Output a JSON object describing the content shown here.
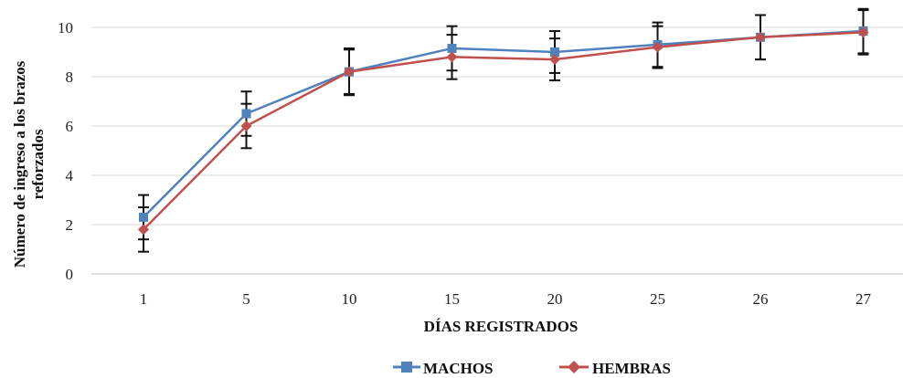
{
  "chart_data": {
    "type": "line",
    "title": "",
    "xlabel": "DÍAS REGISTRADOS",
    "ylabel_lines": [
      "Número de ingreso a los brazos",
      "reforzados"
    ],
    "categories": [
      "1",
      "5",
      "10",
      "15",
      "20",
      "25",
      "26",
      "27"
    ],
    "ylim": [
      0,
      10
    ],
    "yticks": [
      0,
      2,
      4,
      6,
      8,
      10
    ],
    "grid": true,
    "legend_position": "bottom",
    "series": [
      {
        "name": "MACHOS",
        "color": "#4F81BD",
        "marker": "square",
        "values": [
          2.3,
          6.5,
          8.2,
          9.15,
          9.0,
          9.3,
          9.6,
          9.85
        ],
        "error": [
          0.9,
          0.9,
          0.95,
          0.9,
          0.85,
          0.9,
          0.9,
          0.9
        ]
      },
      {
        "name": "HEMBRAS",
        "color": "#C0504D",
        "marker": "diamond",
        "values": [
          1.8,
          6.0,
          8.2,
          8.8,
          8.7,
          9.2,
          9.6,
          9.8
        ],
        "error": [
          0.9,
          0.9,
          0.9,
          0.9,
          0.85,
          0.85,
          0.9,
          0.9
        ]
      }
    ]
  }
}
